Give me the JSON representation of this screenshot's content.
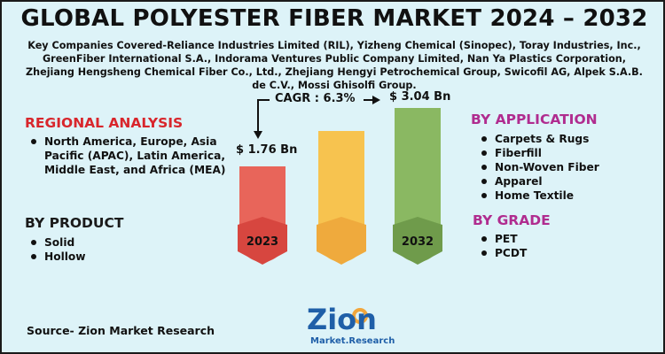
{
  "title": "GLOBAL POLYESTER FIBER MARKET 2024 – 2032",
  "companies_text": "Key Companies Covered-Reliance Industries Limited (RIL), Yizheng Chemical (Sinopec), Toray Industries, Inc., GreenFiber International S.A., Indorama Ventures Public Company Limited, Nan Ya Plastics Corporation, Zhejiang Hengsheng Chemical Fiber Co., Ltd., Zhejiang Hengyi Petrochemical Group, Swicofil AG, Alpek S.A.B. de C.V., Mossi Ghisolfi Group.",
  "regional": {
    "heading": "REGIONAL ANALYSIS",
    "items": [
      "North America, Europe, Asia Pacific (APAC), Latin America, Middle East, and Africa (MEA)"
    ]
  },
  "product": {
    "heading": "BY PRODUCT",
    "items": [
      "Solid",
      "Hollow"
    ]
  },
  "application": {
    "heading": "BY APPLICATION",
    "items": [
      "Carpets & Rugs",
      "Fiberfill",
      "Non-Woven Fiber",
      "Apparel",
      "Home Textile"
    ]
  },
  "grade": {
    "heading": "BY GRADE",
    "items": [
      "PET",
      "PCDT"
    ]
  },
  "market": {
    "cagr_label": "CAGR : 6.3%",
    "start_value": "$ 1.76  Bn",
    "end_value": "$ 3.04 Bn",
    "start_year": "2023",
    "end_year": "2032"
  },
  "source": "Source- Zion Market Research",
  "logo": {
    "word": "Zion",
    "sub": "Market.Research"
  },
  "colors": {
    "background": "#ddf3f8",
    "bar_2023": "#e8655a",
    "bar_mid": "#f7c34f",
    "bar_2032": "#8ab862",
    "heading_red": "#d8262c",
    "heading_purple": "#b02c8f"
  },
  "icons": [
    "down-arrow-icon",
    "right-arrow-icon"
  ]
}
